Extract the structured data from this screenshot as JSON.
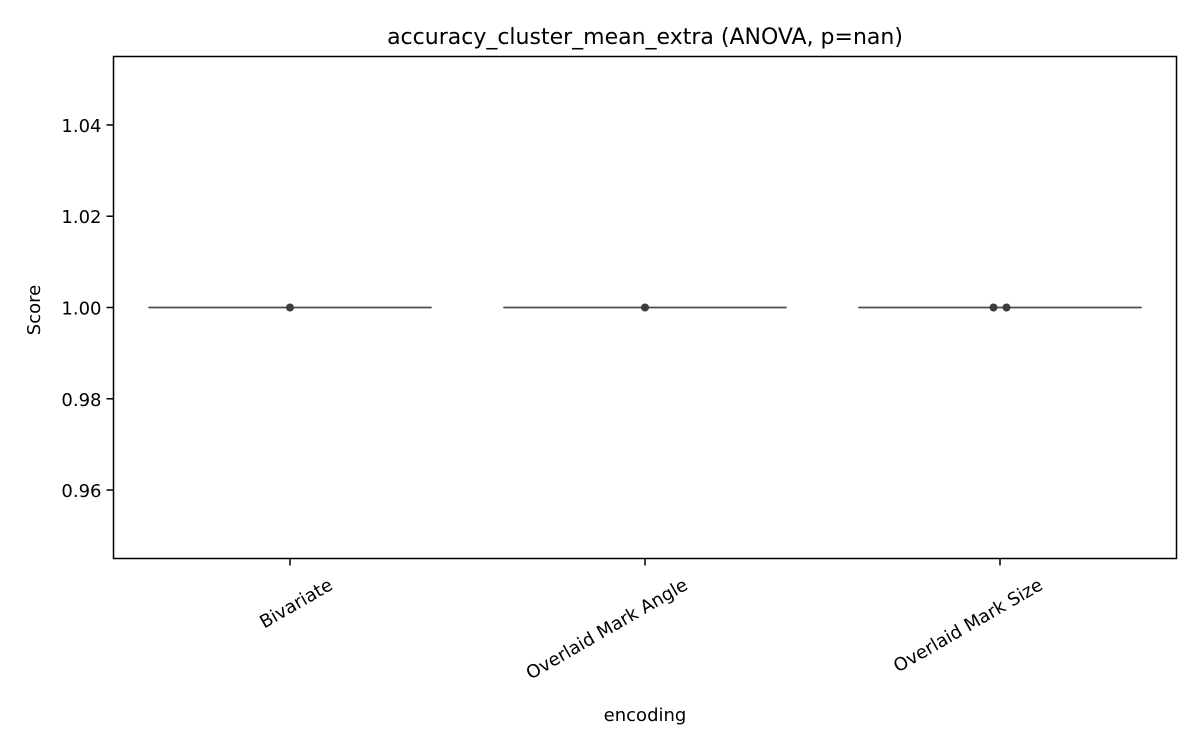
{
  "chart_data": {
    "type": "box",
    "title": "accuracy_cluster_mean_extra (ANOVA, p=nan)",
    "xlabel": "encoding",
    "ylabel": "Score",
    "categories": [
      "Bivariate",
      "Overlaid Mark Angle",
      "Overlaid Mark Size"
    ],
    "ylim": [
      0.945,
      1.055
    ],
    "yticks": [
      0.96,
      0.98,
      1.0,
      1.02,
      1.04
    ],
    "ytick_labels": [
      "0.96",
      "0.98",
      "1.00",
      "1.02",
      "1.04"
    ],
    "grid": false,
    "boxes": [
      {
        "category": "Bivariate",
        "min": 1.0,
        "q1": 1.0,
        "median": 1.0,
        "q3": 1.0,
        "max": 1.0
      },
      {
        "category": "Overlaid Mark Angle",
        "min": 1.0,
        "q1": 1.0,
        "median": 1.0,
        "q3": 1.0,
        "max": 1.0
      },
      {
        "category": "Overlaid Mark Size",
        "min": 1.0,
        "q1": 1.0,
        "median": 1.0,
        "q3": 1.0,
        "max": 1.0
      }
    ],
    "points": [
      {
        "category": "Bivariate",
        "y": 1.0
      },
      {
        "category": "Overlaid Mark Angle",
        "y": 1.0
      },
      {
        "category": "Overlaid Mark Size",
        "y": 1.0
      },
      {
        "category": "Overlaid Mark Size",
        "y": 1.0
      }
    ],
    "colors": {
      "box_line": "#4d4d4d",
      "point": "#3d3d3d",
      "axis": "#000000"
    }
  }
}
